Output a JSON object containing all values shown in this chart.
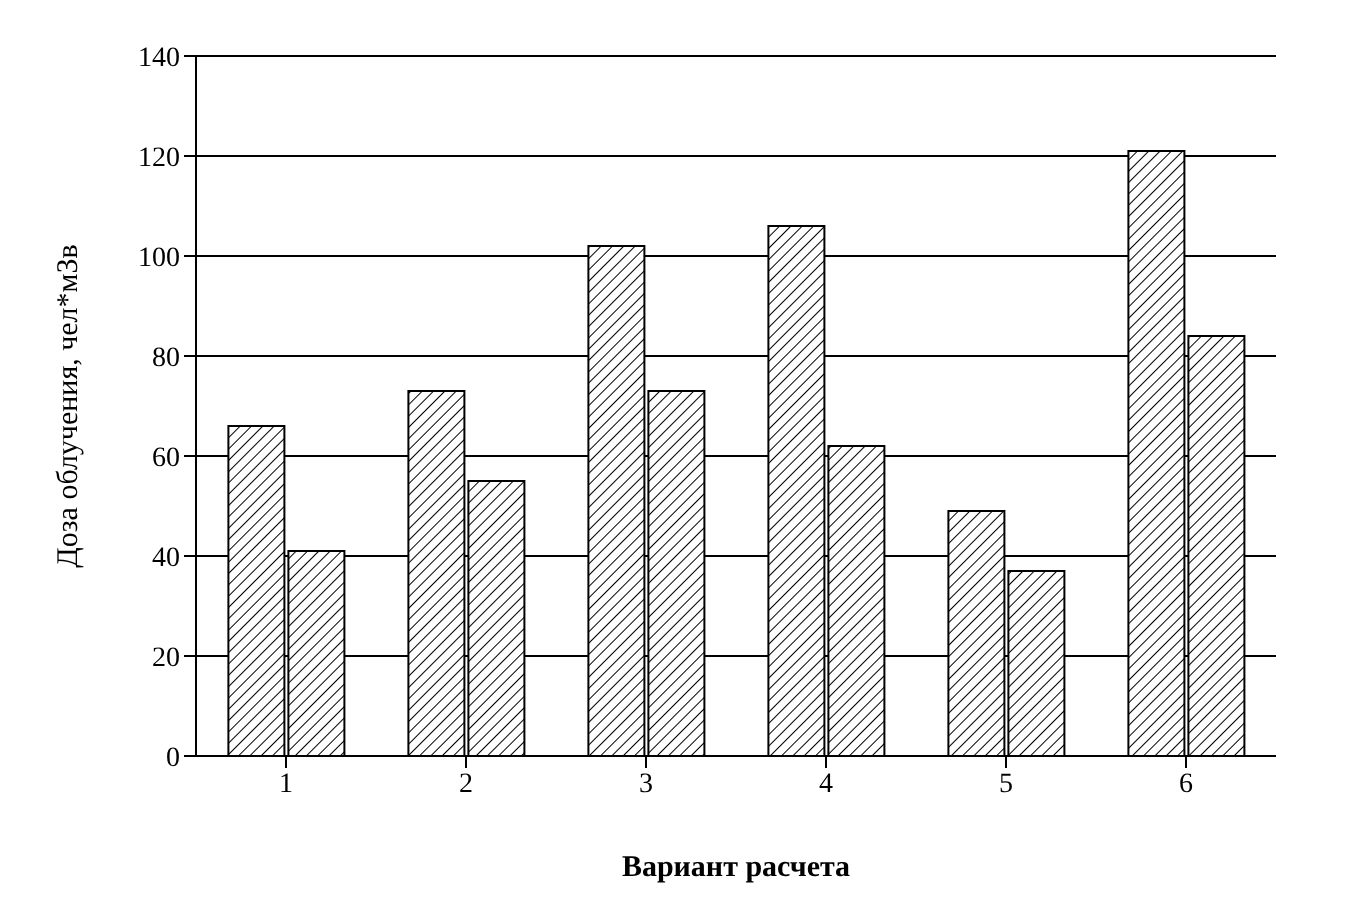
{
  "chart_data": {
    "type": "bar",
    "xlabel": "Вариант расчета",
    "ylabel": "Доза облучения, чел*мЗв",
    "categories": [
      "1",
      "2",
      "3",
      "4",
      "5",
      "6"
    ],
    "series": [
      {
        "color": "#000000",
        "values": [
          66,
          73,
          102,
          106,
          49,
          121
        ]
      },
      {
        "color": "#000000",
        "values": [
          41,
          55,
          73,
          62,
          37,
          84
        ]
      }
    ],
    "ylim": [
      0,
      140
    ],
    "yticks": [
      0,
      20,
      40,
      60,
      80,
      100,
      120,
      140
    ],
    "grid": "y",
    "legend": false
  }
}
